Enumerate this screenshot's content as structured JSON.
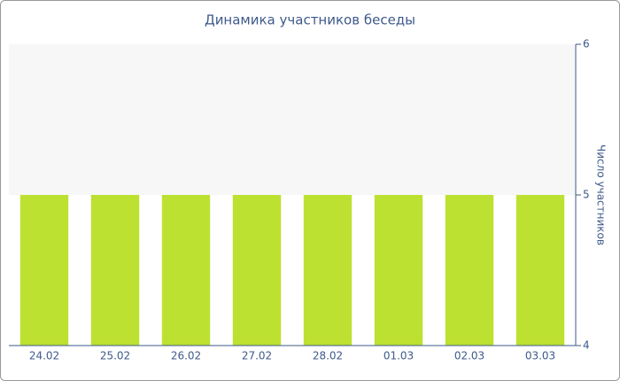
{
  "chart_data": {
    "type": "bar",
    "title": "Динамика участников беседы",
    "y_label": "Число участников",
    "categories": [
      "24.02",
      "25.02",
      "26.02",
      "27.02",
      "28.02",
      "01.03",
      "02.03",
      "03.03"
    ],
    "values": [
      5,
      5,
      5,
      5,
      5,
      5,
      5,
      5
    ],
    "color": "#bde130",
    "ylim": [
      4,
      6
    ],
    "yticks": [
      4,
      5,
      6
    ],
    "grid": false
  }
}
